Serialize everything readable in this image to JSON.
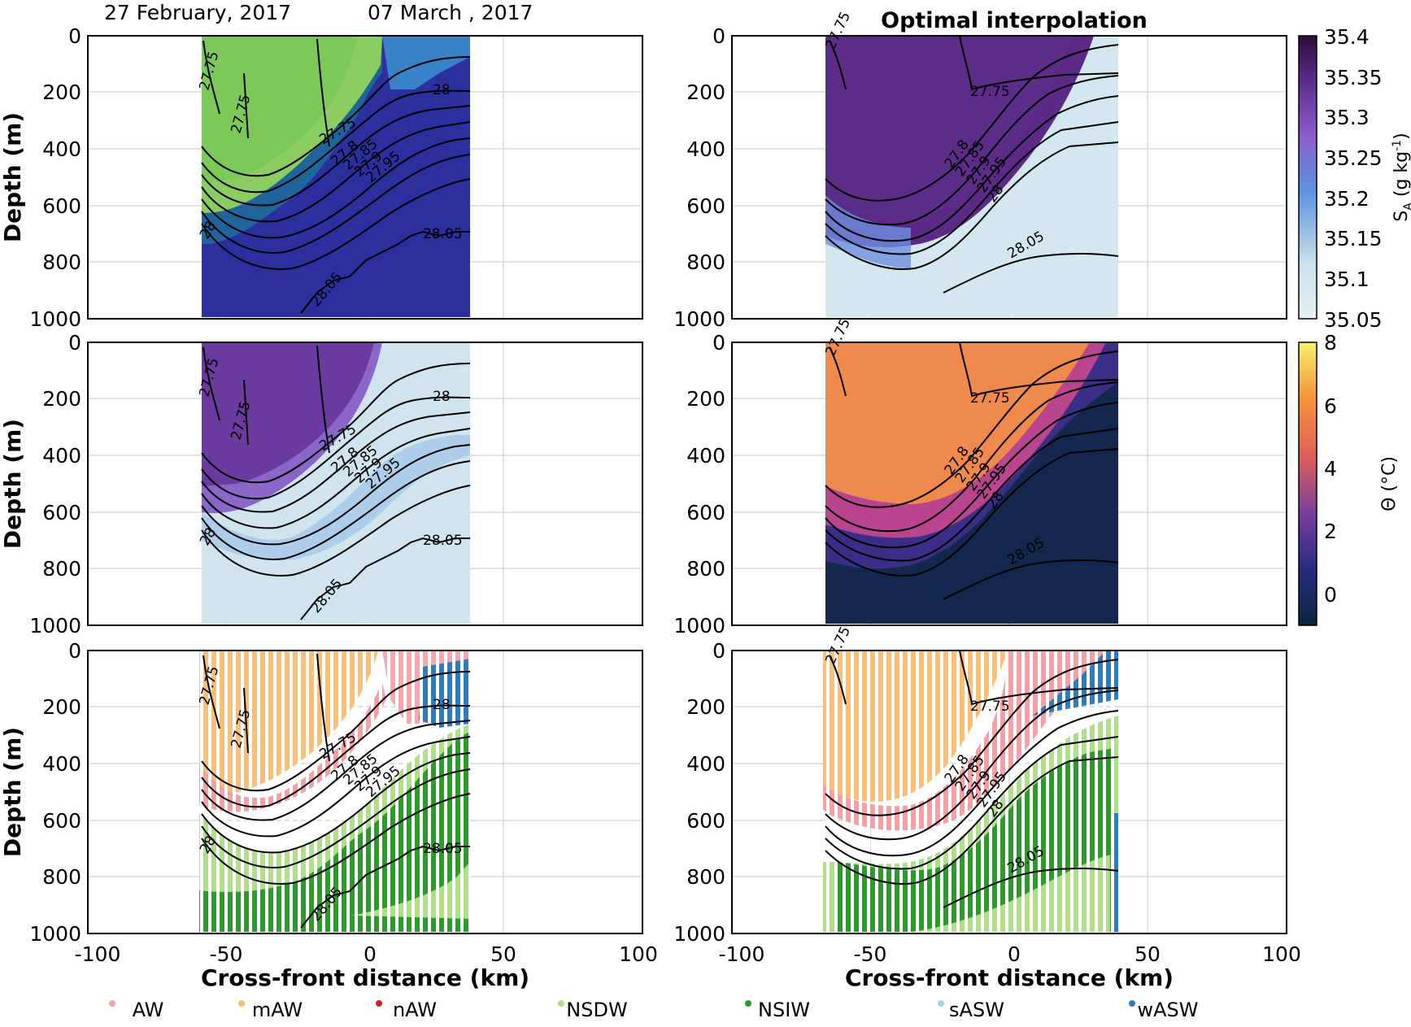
{
  "header": {
    "date_left": "27 February, 2017",
    "date_right": "07 March    , 2017",
    "right_title": "Optimal interpolation"
  },
  "colorbars": {
    "salinity": {
      "label": "S_A (g kg^-1)",
      "label_main": "S",
      "label_sub": "A",
      "label_rest": "(g kg",
      "label_sup": "-1",
      "label_end": ")",
      "ticks": [
        "35.4",
        "35.35",
        "35.3",
        "35.25",
        "35.2",
        "35.15",
        "35.1",
        "35.05"
      ],
      "range": [
        35.05,
        35.4
      ],
      "colors": [
        "#e6f1f4",
        "#c7e0ea",
        "#5d93e0",
        "#8a5ccc",
        "#5a2a86",
        "#2a0d3a"
      ]
    },
    "temperature": {
      "label": "Θ (°C)",
      "ticks": [
        "8",
        "6",
        "4",
        "2",
        "0"
      ],
      "range": [
        -1,
        8
      ],
      "colors": [
        "#0b2540",
        "#2a2c80",
        "#7a3e9a",
        "#e0605a",
        "#f5933a",
        "#f4f26a"
      ]
    }
  },
  "chart_data": [
    {
      "type": "heatmap",
      "panel": "observed salinity",
      "xlabel": "",
      "ylabel": "Depth (m)",
      "xlim": [
        -100,
        100
      ],
      "ylim": [
        1000,
        0
      ],
      "x_ticks": [
        "-100",
        "-50",
        "0",
        "50",
        "100"
      ],
      "y_ticks": [
        "0",
        "200",
        "400",
        "600",
        "800",
        "1000"
      ],
      "contour_labels": [
        "27.75",
        "27.75",
        "27.75",
        "27.8",
        "27.85",
        "27.9",
        "27.95",
        "28",
        "28",
        "28.05",
        "28.05"
      ]
    },
    {
      "type": "heatmap",
      "panel": "interpolated salinity",
      "title": "Optimal interpolation",
      "xlim": [
        -100,
        100
      ],
      "ylim": [
        1000,
        0
      ],
      "contour_labels": [
        "27.75",
        "27.75",
        "27.8",
        "27.85",
        "27.9",
        "27.95",
        "28",
        "28.05"
      ]
    },
    {
      "type": "heatmap",
      "panel": "observed temperature",
      "ylabel": "Depth (m)",
      "xlim": [
        -100,
        100
      ],
      "ylim": [
        1000,
        0
      ],
      "contour_labels": [
        "27.75",
        "27.75",
        "27.75",
        "27.8",
        "27.85",
        "27.9",
        "27.95",
        "28",
        "28",
        "28.05",
        "28.05"
      ]
    },
    {
      "type": "heatmap",
      "panel": "interpolated temperature",
      "xlim": [
        -100,
        100
      ],
      "ylim": [
        1000,
        0
      ],
      "contour_labels": [
        "27.75",
        "27.75",
        "27.8",
        "27.85",
        "27.9",
        "27.95",
        "28",
        "28.05"
      ]
    },
    {
      "type": "scatter",
      "panel": "observed water masses",
      "xlabel": "Cross-front distance (km)",
      "ylabel": "Depth (m)",
      "xlim": [
        -100,
        100
      ],
      "ylim": [
        1000,
        0
      ],
      "x_ticks": [
        "-100",
        "-50",
        "0",
        "50",
        "100"
      ],
      "contour_labels": [
        "27.75",
        "27.75",
        "27.75",
        "27.8",
        "27.85",
        "27.9",
        "27.95",
        "28",
        "28",
        "28.05",
        "28.05"
      ]
    },
    {
      "type": "scatter",
      "panel": "interpolated water masses",
      "xlabel": "Cross-front distance (km)",
      "xlim": [
        -100,
        100
      ],
      "ylim": [
        1000,
        0
      ],
      "x_ticks": [
        "-100",
        "-50",
        "0",
        "50",
        "100"
      ],
      "contour_labels": [
        "27.75",
        "27.75",
        "27.8",
        "27.85",
        "27.9",
        "27.95",
        "28",
        "28.05"
      ]
    }
  ],
  "legend": [
    {
      "name": "AW",
      "color": "#f4a0a6"
    },
    {
      "name": "mAW",
      "color": "#f8bf78"
    },
    {
      "name": "nAW",
      "color": "#d21e1e"
    },
    {
      "name": "NSDW",
      "color": "#b0df8c"
    },
    {
      "name": "NSIW",
      "color": "#2e9a2e"
    },
    {
      "name": "sASW",
      "color": "#a8cfe3"
    },
    {
      "name": "wASW",
      "color": "#2f7cb8"
    }
  ]
}
